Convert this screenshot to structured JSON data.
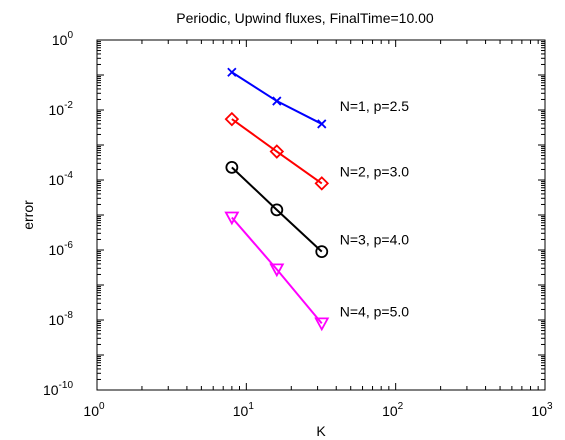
{
  "chart_data": {
    "type": "line",
    "title": "Periodic, Upwind fluxes, FinalTime=10.00",
    "xlabel": "K",
    "ylabel": "error",
    "xscale": "log",
    "yscale": "log",
    "xlim": [
      1,
      1000
    ],
    "ylim": [
      1e-10,
      1
    ],
    "x_ticks": [
      {
        "base": "10",
        "exp": "0"
      },
      {
        "base": "10",
        "exp": "1"
      },
      {
        "base": "10",
        "exp": "2"
      },
      {
        "base": "10",
        "exp": "3"
      }
    ],
    "y_ticks": [
      {
        "base": "10",
        "exp": "0"
      },
      {
        "base": "10",
        "exp": "-2"
      },
      {
        "base": "10",
        "exp": "-4"
      },
      {
        "base": "10",
        "exp": "-6"
      },
      {
        "base": "10",
        "exp": "-8"
      },
      {
        "base": "10",
        "exp": "-10"
      }
    ],
    "grid": false,
    "series": [
      {
        "label": "N=1, p=2.5",
        "color": "#0000ff",
        "marker": "x",
        "x": [
          8,
          16,
          32
        ],
        "y": [
          0.12,
          0.018,
          0.004
        ]
      },
      {
        "label": "N=2, p=3.0",
        "color": "#ff0000",
        "marker": "diamond",
        "x": [
          8,
          16,
          32
        ],
        "y": [
          0.0055,
          0.00065,
          8e-05
        ]
      },
      {
        "label": "N=3, p=4.0",
        "color": "#000000",
        "marker": "circle",
        "x": [
          8,
          16,
          32
        ],
        "y": [
          0.00023,
          1.4e-05,
          9e-07
        ]
      },
      {
        "label": "N=4, p=5.0",
        "color": "#ff00ff",
        "marker": "triangle-down",
        "x": [
          8,
          16,
          32
        ],
        "y": [
          8.5e-06,
          2.8e-07,
          8e-09
        ]
      }
    ]
  }
}
